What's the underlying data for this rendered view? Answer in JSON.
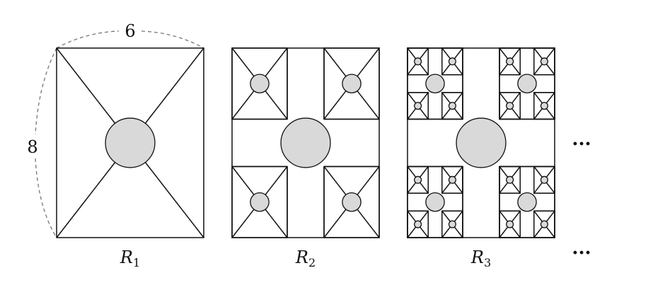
{
  "dimensions": {
    "width_label": "6",
    "height_label": "8"
  },
  "rectangles": [
    {
      "letter": "R",
      "subscript": "1",
      "level": 1
    },
    {
      "letter": "R",
      "subscript": "2",
      "level": 2
    },
    {
      "letter": "R",
      "subscript": "3",
      "level": 3
    }
  ],
  "ellipsis_symbol": "···",
  "colors": {
    "circle_fill": "#d9d9d9",
    "stroke": "#111111",
    "dashed": "#777777"
  }
}
